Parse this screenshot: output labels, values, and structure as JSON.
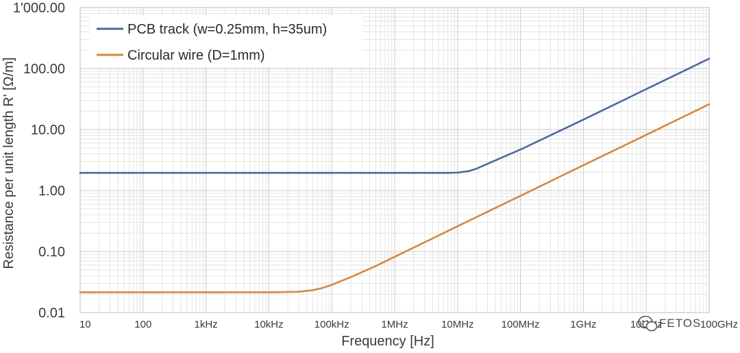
{
  "chart_data": {
    "type": "line",
    "xlabel": "Frequency [Hz]",
    "ylabel": "Resistance per unit length R' [Ω/m]",
    "x_scale": "log",
    "y_scale": "log",
    "xlim": [
      10,
      100000000000
    ],
    "ylim": [
      0.01,
      1000
    ],
    "x_ticks": [
      {
        "value": 10,
        "label": "10"
      },
      {
        "value": 100,
        "label": "100"
      },
      {
        "value": 1000,
        "label": "1kHz"
      },
      {
        "value": 10000,
        "label": "10kHz"
      },
      {
        "value": 100000,
        "label": "100kHz"
      },
      {
        "value": 1000000,
        "label": "1MHz"
      },
      {
        "value": 10000000,
        "label": "10MHz"
      },
      {
        "value": 100000000,
        "label": "100MHz"
      },
      {
        "value": 1000000000,
        "label": "1GHz"
      },
      {
        "value": 10000000000,
        "label": "10GHz"
      },
      {
        "value": 100000000000,
        "label": "100GHz"
      }
    ],
    "y_ticks": [
      {
        "value": 0.01,
        "label": "0.01"
      },
      {
        "value": 0.1,
        "label": "0.10"
      },
      {
        "value": 1,
        "label": "1.00"
      },
      {
        "value": 10,
        "label": "10.00"
      },
      {
        "value": 100,
        "label": "100.00"
      },
      {
        "value": 1000,
        "label": "1'000.00"
      }
    ],
    "grid": true,
    "legend": "top-left",
    "series": [
      {
        "name": "PCB track (w=0.25mm, h=35um)",
        "color": "#4a6a9c",
        "x": [
          10,
          100,
          1000,
          10000,
          100000,
          1000000,
          3000000,
          7000000,
          10000000,
          15000000,
          20000000,
          30000000,
          50000000,
          100000000,
          1000000000,
          10000000000,
          100000000000
        ],
        "y": [
          1.95,
          1.95,
          1.95,
          1.95,
          1.95,
          1.95,
          1.95,
          1.95,
          1.97,
          2.08,
          2.28,
          2.75,
          3.45,
          4.7,
          14.5,
          46,
          145
        ]
      },
      {
        "name": "Circular wire (D=1mm)",
        "color": "#d4883e",
        "x": [
          10,
          100,
          1000,
          10000,
          30000,
          50000,
          70000,
          100000,
          200000,
          500000,
          1000000,
          10000000,
          100000000,
          1000000000,
          10000000000,
          100000000000
        ],
        "y": [
          0.0215,
          0.0215,
          0.0215,
          0.0215,
          0.0219,
          0.0233,
          0.0252,
          0.0285,
          0.038,
          0.058,
          0.082,
          0.26,
          0.82,
          2.6,
          8.2,
          26
        ]
      }
    ]
  },
  "watermark": {
    "text": "FETOS",
    "icon": "wechat-icon"
  }
}
